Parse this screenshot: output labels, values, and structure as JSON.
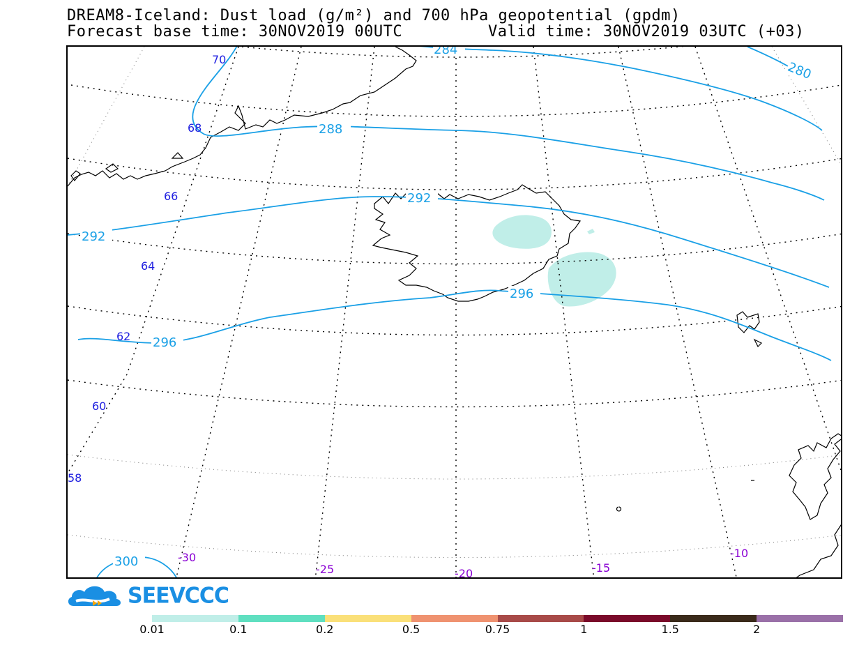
{
  "title": {
    "line1": "DREAM8-Iceland: Dust load (g/m²) and 700 hPa geopotential (gpdm)",
    "forecast_base": "Forecast base time: 30NOV2019 00UTC",
    "valid_time": "Valid time: 30NOV2019 03UTC (+03)"
  },
  "map": {
    "latitude_labels": [
      "70",
      "68",
      "66",
      "64",
      "62",
      "60",
      "58"
    ],
    "longitude_labels": [
      "-30",
      "-25",
      "-20",
      "-15",
      "-10"
    ],
    "geopotential_labels": [
      "284",
      "280",
      "288",
      "292",
      "292",
      "296",
      "296",
      "300"
    ],
    "colors": {
      "contour": "#1aa0e6",
      "latitude_label": "#2020e0",
      "longitude_label": "#8a00d4",
      "dust_fill": "#c0eee8",
      "coastline": "#000000"
    }
  },
  "logo": {
    "text": "SEEVCCC",
    "icon": "cloud-logo-icon"
  },
  "colorbar": {
    "labels": [
      "0.01",
      "0.1",
      "0.2",
      "0.5",
      "0.75",
      "1",
      "1.5",
      "2"
    ],
    "colors": [
      "#c0eee8",
      "#5fdfc0",
      "#fae079",
      "#ef9270",
      "#a84a48",
      "#7a0a2a",
      "#3a2a1a",
      "#9a70a8"
    ]
  }
}
